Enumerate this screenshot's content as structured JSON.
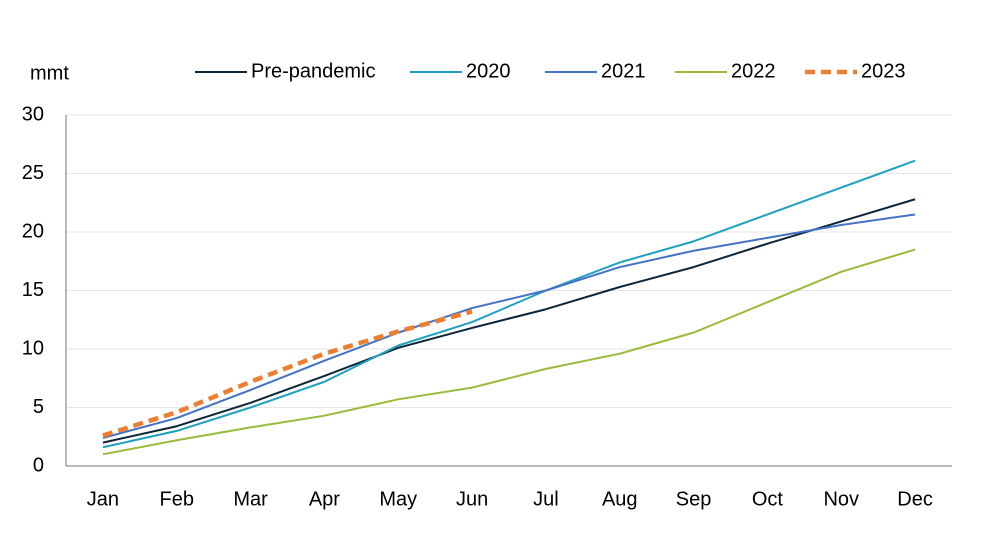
{
  "chart_data": {
    "type": "line",
    "ylabel": "mmt",
    "categories": [
      "Jan",
      "Feb",
      "Mar",
      "Apr",
      "May",
      "Jun",
      "Jul",
      "Aug",
      "Sep",
      "Oct",
      "Nov",
      "Dec"
    ],
    "series": [
      {
        "name": "Pre-pandemic",
        "color": "#0d2538",
        "values": [
          2.0,
          3.4,
          5.4,
          7.7,
          10.1,
          11.8,
          13.4,
          15.3,
          17.0,
          19.0,
          20.9,
          22.8
        ]
      },
      {
        "name": "2020",
        "color": "#1fa0c0",
        "values": [
          1.6,
          3.0,
          5.0,
          7.2,
          10.3,
          12.3,
          15.0,
          17.4,
          19.2,
          21.5,
          23.8,
          26.1
        ]
      },
      {
        "name": "2021",
        "color": "#4472c4",
        "values": [
          2.4,
          4.1,
          6.5,
          9.0,
          11.4,
          13.5,
          15.0,
          17.0,
          18.4,
          19.5,
          20.6,
          21.5
        ]
      },
      {
        "name": "2022",
        "color": "#9aba3a",
        "values": [
          1.0,
          2.2,
          3.3,
          4.3,
          5.7,
          6.7,
          8.3,
          9.6,
          11.4,
          14.0,
          16.6,
          18.5
        ]
      },
      {
        "name": "2023",
        "color": "#ed7d31",
        "line_style": "dashed",
        "values": [
          2.6,
          4.6,
          7.2,
          9.6,
          11.5,
          13.2,
          null,
          null,
          null,
          null,
          null,
          null
        ]
      }
    ],
    "ylim": [
      0,
      30
    ],
    "yticks": [
      0,
      5,
      10,
      15,
      20,
      25,
      30
    ],
    "grid": true,
    "legend": "top"
  }
}
